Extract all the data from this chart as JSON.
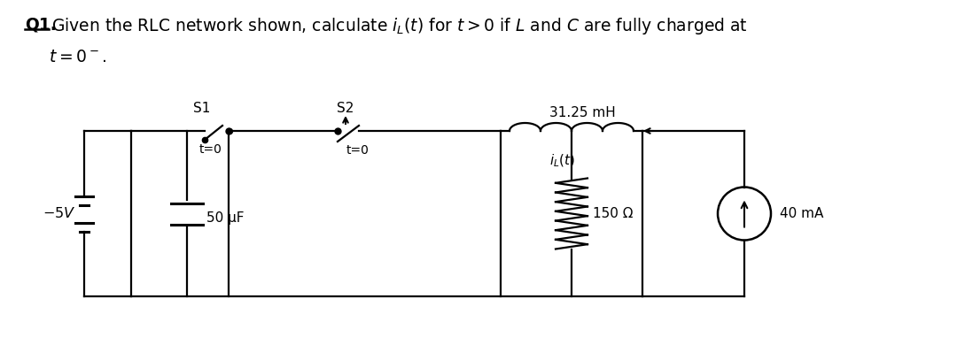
{
  "background_color": "#ffffff",
  "circuit_color": "#000000",
  "label_S1": "S1",
  "label_S2": "S2",
  "label_inductor": "31.25 mH",
  "label_t0_left": "t=0",
  "label_t0_right": "t=0",
  "label_iL": "$i_L(t)$",
  "label_voltage": "$-5V$",
  "label_capacitor": "50 μF",
  "label_resistor": "150 Ω",
  "label_current": "40 mA",
  "fig_w": 10.8,
  "fig_h": 3.9,
  "dpi": 100,
  "xlim": [
    0,
    1080
  ],
  "ylim": [
    0,
    390
  ],
  "lw": 1.6
}
